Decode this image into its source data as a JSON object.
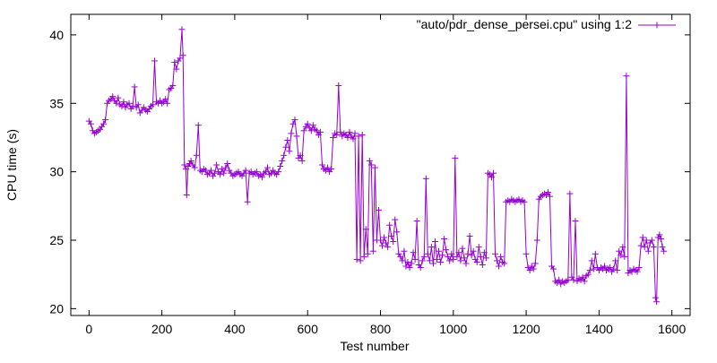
{
  "chart_data": {
    "type": "line",
    "title": "",
    "xlabel": "Test number",
    "ylabel": "CPU time (s)",
    "xlim": [
      -50,
      1650
    ],
    "ylim": [
      19.5,
      41.5
    ],
    "xticks": [
      0,
      200,
      400,
      600,
      800,
      1000,
      1200,
      1400,
      1600
    ],
    "yticks": [
      20,
      25,
      30,
      35,
      40
    ],
    "grid": false,
    "legend": "top-right",
    "marker": "plus",
    "color": "#9400d3",
    "series": [
      {
        "name": "\"auto/pdr_dense_persei.cpu\" using 1:2",
        "points": [
          [
            0,
            33.7
          ],
          [
            5,
            33.5
          ],
          [
            10,
            33.0
          ],
          [
            15,
            32.8
          ],
          [
            20,
            32.9
          ],
          [
            25,
            33.0
          ],
          [
            30,
            33.1
          ],
          [
            35,
            33.3
          ],
          [
            40,
            33.5
          ],
          [
            45,
            33.8
          ],
          [
            50,
            35.0
          ],
          [
            55,
            35.2
          ],
          [
            60,
            35.3
          ],
          [
            65,
            35.5
          ],
          [
            70,
            35.2
          ],
          [
            75,
            35.0
          ],
          [
            80,
            35.4
          ],
          [
            85,
            34.9
          ],
          [
            90,
            34.8
          ],
          [
            95,
            35.1
          ],
          [
            100,
            34.7
          ],
          [
            105,
            34.9
          ],
          [
            110,
            35.0
          ],
          [
            115,
            34.6
          ],
          [
            120,
            34.8
          ],
          [
            125,
            36.2
          ],
          [
            130,
            34.7
          ],
          [
            135,
            34.9
          ],
          [
            140,
            34.3
          ],
          [
            145,
            34.5
          ],
          [
            150,
            34.7
          ],
          [
            155,
            34.5
          ],
          [
            160,
            34.4
          ],
          [
            165,
            34.6
          ],
          [
            170,
            34.8
          ],
          [
            175,
            34.9
          ],
          [
            180,
            38.1
          ],
          [
            185,
            35.1
          ],
          [
            190,
            35.0
          ],
          [
            195,
            35.2
          ],
          [
            200,
            35.0
          ],
          [
            205,
            35.1
          ],
          [
            210,
            35.3
          ],
          [
            215,
            35.0
          ],
          [
            220,
            36.0
          ],
          [
            225,
            36.1
          ],
          [
            230,
            36.3
          ],
          [
            235,
            38.0
          ],
          [
            240,
            37.5
          ],
          [
            245,
            38.1
          ],
          [
            250,
            38.3
          ],
          [
            255,
            40.4
          ],
          [
            258,
            38.5
          ],
          [
            262,
            30.5
          ],
          [
            266,
            30.2
          ],
          [
            268,
            28.3
          ],
          [
            272,
            30.4
          ],
          [
            276,
            30.6
          ],
          [
            280,
            30.8
          ],
          [
            285,
            30.5
          ],
          [
            290,
            30.3
          ],
          [
            295,
            31.2
          ],
          [
            300,
            33.4
          ],
          [
            305,
            30.1
          ],
          [
            310,
            30.0
          ],
          [
            315,
            30.2
          ],
          [
            320,
            30.1
          ],
          [
            325,
            29.8
          ],
          [
            330,
            29.9
          ],
          [
            335,
            30.1
          ],
          [
            340,
            29.7
          ],
          [
            345,
            29.9
          ],
          [
            350,
            30.5
          ],
          [
            355,
            30.0
          ],
          [
            360,
            29.8
          ],
          [
            365,
            30.2
          ],
          [
            370,
            29.9
          ],
          [
            375,
            30.3
          ],
          [
            380,
            30.6
          ],
          [
            385,
            30.1
          ],
          [
            390,
            29.9
          ],
          [
            395,
            29.7
          ],
          [
            400,
            29.8
          ],
          [
            405,
            29.9
          ],
          [
            410,
            30.0
          ],
          [
            415,
            29.8
          ],
          [
            420,
            29.7
          ],
          [
            425,
            29.9
          ],
          [
            430,
            30.1
          ],
          [
            435,
            27.8
          ],
          [
            440,
            29.9
          ],
          [
            445,
            30.0
          ],
          [
            450,
            29.8
          ],
          [
            455,
            29.9
          ],
          [
            460,
            30.0
          ],
          [
            465,
            29.7
          ],
          [
            470,
            29.8
          ],
          [
            475,
            29.6
          ],
          [
            480,
            29.9
          ],
          [
            485,
            30.0
          ],
          [
            490,
            30.3
          ],
          [
            495,
            29.8
          ],
          [
            500,
            29.9
          ],
          [
            505,
            30.1
          ],
          [
            510,
            29.9
          ],
          [
            515,
            29.8
          ],
          [
            520,
            30.0
          ],
          [
            525,
            30.4
          ],
          [
            530,
            30.8
          ],
          [
            535,
            31.2
          ],
          [
            540,
            31.8
          ],
          [
            545,
            32.3
          ],
          [
            550,
            31.5
          ],
          [
            555,
            32.8
          ],
          [
            560,
            33.5
          ],
          [
            565,
            33.8
          ],
          [
            570,
            32.6
          ],
          [
            575,
            31.0
          ],
          [
            580,
            31.2
          ],
          [
            585,
            30.8
          ],
          [
            590,
            33.0
          ],
          [
            595,
            33.3
          ],
          [
            600,
            33.5
          ],
          [
            605,
            33.2
          ],
          [
            610,
            33.0
          ],
          [
            615,
            33.4
          ],
          [
            620,
            33.1
          ],
          [
            625,
            33.0
          ],
          [
            630,
            32.7
          ],
          [
            635,
            32.9
          ],
          [
            640,
            30.5
          ],
          [
            645,
            30.2
          ],
          [
            650,
            30.1
          ],
          [
            655,
            30.3
          ],
          [
            660,
            30.0
          ],
          [
            665,
            30.2
          ],
          [
            670,
            32.5
          ],
          [
            675,
            32.8
          ],
          [
            680,
            32.7
          ],
          [
            685,
            36.3
          ],
          [
            690,
            32.9
          ],
          [
            695,
            32.6
          ],
          [
            700,
            32.8
          ],
          [
            705,
            32.7
          ],
          [
            710,
            32.5
          ],
          [
            715,
            32.9
          ],
          [
            720,
            32.6
          ],
          [
            725,
            32.4
          ],
          [
            730,
            32.8
          ],
          [
            735,
            23.6
          ],
          [
            740,
            32.6
          ],
          [
            745,
            23.5
          ],
          [
            750,
            32.7
          ],
          [
            755,
            23.8
          ],
          [
            760,
            25.8
          ],
          [
            765,
            24.0
          ],
          [
            770,
            30.8
          ],
          [
            775,
            30.5
          ],
          [
            780,
            24.2
          ],
          [
            785,
            30.3
          ],
          [
            790,
            25.0
          ],
          [
            795,
            27.2
          ],
          [
            800,
            25.0
          ],
          [
            805,
            24.6
          ],
          [
            810,
            25.2
          ],
          [
            815,
            24.8
          ],
          [
            820,
            24.5
          ],
          [
            825,
            26.1
          ],
          [
            830,
            25.3
          ],
          [
            835,
            24.9
          ],
          [
            840,
            26.5
          ],
          [
            845,
            25.6
          ],
          [
            850,
            24.0
          ],
          [
            855,
            23.8
          ],
          [
            860,
            23.5
          ],
          [
            865,
            24.2
          ],
          [
            870,
            23.1
          ],
          [
            875,
            23.4
          ],
          [
            880,
            23.0
          ],
          [
            885,
            23.3
          ],
          [
            890,
            24.1
          ],
          [
            895,
            23.6
          ],
          [
            900,
            26.4
          ],
          [
            905,
            23.2
          ],
          [
            910,
            23.0
          ],
          [
            915,
            23.5
          ],
          [
            920,
            23.8
          ],
          [
            925,
            29.5
          ],
          [
            930,
            24.0
          ],
          [
            935,
            23.5
          ],
          [
            940,
            24.5
          ],
          [
            945,
            23.3
          ],
          [
            950,
            24.9
          ],
          [
            955,
            23.6
          ],
          [
            960,
            24.2
          ],
          [
            965,
            23.4
          ],
          [
            970,
            23.9
          ],
          [
            975,
            25.1
          ],
          [
            980,
            24.3
          ],
          [
            985,
            23.8
          ],
          [
            990,
            23.5
          ],
          [
            995,
            24.0
          ],
          [
            1000,
            23.6
          ],
          [
            1005,
            31.0
          ],
          [
            1010,
            23.8
          ],
          [
            1015,
            24.1
          ],
          [
            1020,
            23.5
          ],
          [
            1025,
            24.4
          ],
          [
            1030,
            23.7
          ],
          [
            1035,
            23.3
          ],
          [
            1040,
            24.0
          ],
          [
            1045,
            25.3
          ],
          [
            1050,
            23.9
          ],
          [
            1055,
            24.2
          ],
          [
            1060,
            23.6
          ],
          [
            1065,
            23.4
          ],
          [
            1070,
            24.5
          ],
          [
            1075,
            23.8
          ],
          [
            1080,
            23.2
          ],
          [
            1085,
            24.1
          ],
          [
            1090,
            23.7
          ],
          [
            1095,
            29.9
          ],
          [
            1100,
            29.8
          ],
          [
            1105,
            29.6
          ],
          [
            1110,
            29.9
          ],
          [
            1115,
            24.0
          ],
          [
            1120,
            23.5
          ],
          [
            1125,
            23.1
          ],
          [
            1130,
            23.8
          ],
          [
            1135,
            23.4
          ],
          [
            1140,
            23.3
          ],
          [
            1145,
            27.8
          ],
          [
            1150,
            27.9
          ],
          [
            1155,
            27.8
          ],
          [
            1160,
            28.0
          ],
          [
            1165,
            27.9
          ],
          [
            1170,
            27.8
          ],
          [
            1175,
            27.9
          ],
          [
            1180,
            28.0
          ],
          [
            1185,
            27.8
          ],
          [
            1190,
            27.9
          ],
          [
            1195,
            27.8
          ],
          [
            1200,
            24.0
          ],
          [
            1205,
            23.0
          ],
          [
            1210,
            22.8
          ],
          [
            1215,
            23.1
          ],
          [
            1220,
            22.9
          ],
          [
            1225,
            23.3
          ],
          [
            1230,
            25.0
          ],
          [
            1235,
            28.0
          ],
          [
            1240,
            28.2
          ],
          [
            1245,
            28.3
          ],
          [
            1250,
            28.4
          ],
          [
            1255,
            28.3
          ],
          [
            1260,
            28.5
          ],
          [
            1265,
            28.2
          ],
          [
            1270,
            23.1
          ],
          [
            1275,
            22.9
          ],
          [
            1280,
            22.0
          ],
          [
            1285,
            21.9
          ],
          [
            1290,
            22.1
          ],
          [
            1295,
            21.8
          ],
          [
            1300,
            22.0
          ],
          [
            1305,
            21.9
          ],
          [
            1310,
            22.0
          ],
          [
            1315,
            22.1
          ],
          [
            1320,
            28.4
          ],
          [
            1325,
            22.3
          ],
          [
            1330,
            22.1
          ],
          [
            1335,
            26.4
          ],
          [
            1340,
            22.0
          ],
          [
            1345,
            22.2
          ],
          [
            1350,
            22.1
          ],
          [
            1355,
            22.3
          ],
          [
            1360,
            22.0
          ],
          [
            1365,
            22.4
          ],
          [
            1370,
            22.5
          ],
          [
            1375,
            22.8
          ],
          [
            1380,
            23.5
          ],
          [
            1385,
            22.9
          ],
          [
            1390,
            24.0
          ],
          [
            1395,
            23.0
          ],
          [
            1400,
            22.8
          ],
          [
            1405,
            23.0
          ],
          [
            1410,
            22.9
          ],
          [
            1415,
            23.1
          ],
          [
            1420,
            22.8
          ],
          [
            1425,
            22.9
          ],
          [
            1430,
            23.0
          ],
          [
            1435,
            22.7
          ],
          [
            1440,
            22.9
          ],
          [
            1445,
            23.5
          ],
          [
            1450,
            22.8
          ],
          [
            1455,
            24.2
          ],
          [
            1460,
            23.9
          ],
          [
            1465,
            24.5
          ],
          [
            1470,
            23.8
          ],
          [
            1475,
            37.0
          ],
          [
            1480,
            22.6
          ],
          [
            1485,
            22.8
          ],
          [
            1490,
            22.7
          ],
          [
            1495,
            22.9
          ],
          [
            1500,
            22.8
          ],
          [
            1505,
            22.7
          ],
          [
            1510,
            23.0
          ],
          [
            1515,
            24.6
          ],
          [
            1520,
            25.2
          ],
          [
            1525,
            24.5
          ],
          [
            1530,
            25.0
          ],
          [
            1535,
            24.2
          ],
          [
            1540,
            24.8
          ],
          [
            1545,
            25.0
          ],
          [
            1550,
            24.5
          ],
          [
            1555,
            20.8
          ],
          [
            1558,
            20.5
          ],
          [
            1562,
            25.2
          ],
          [
            1566,
            25.4
          ],
          [
            1570,
            25.1
          ],
          [
            1574,
            24.5
          ],
          [
            1578,
            24.2
          ]
        ]
      }
    ]
  }
}
